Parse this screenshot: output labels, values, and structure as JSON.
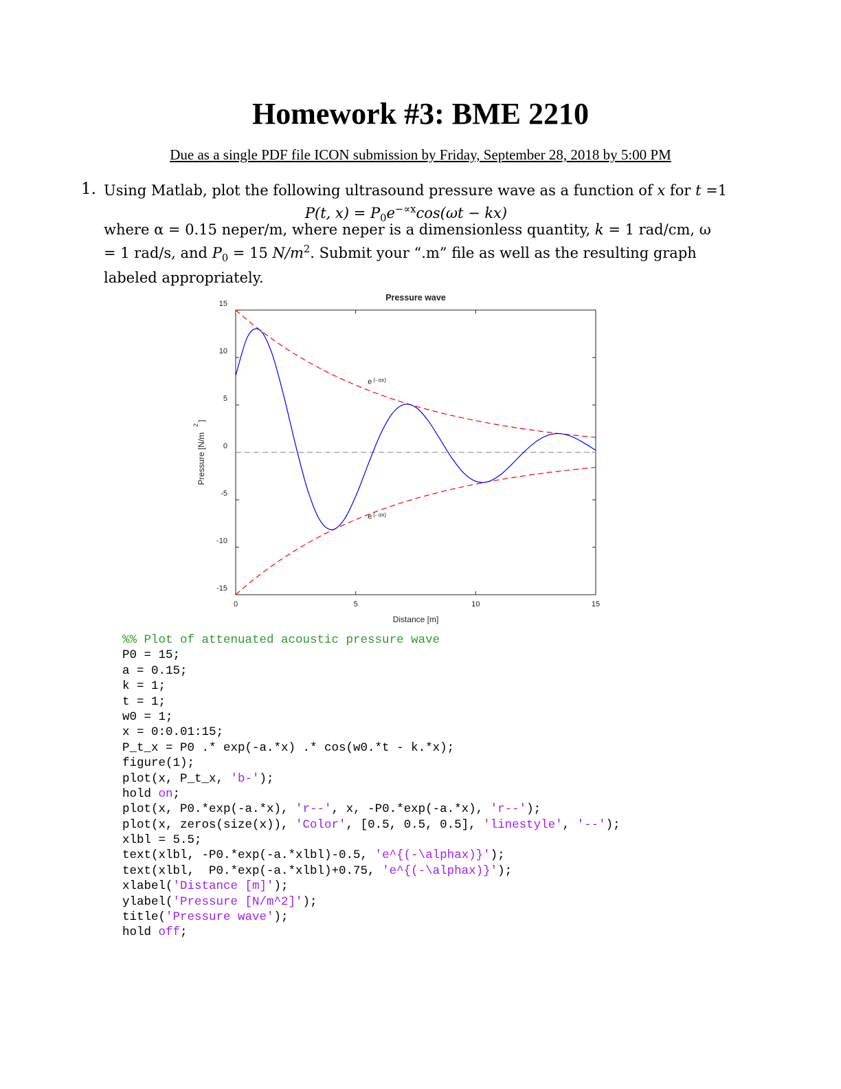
{
  "header": {
    "title": "Homework #3: BME 2210",
    "due": "Due as a single PDF file ICON submission by Friday, September 28, 2018 by 5:00 PM"
  },
  "problem": {
    "number": "1.",
    "line1": [
      {
        "text": "Using Matlab, plot the following ultrasound pressure wave as a function of "
      },
      {
        "text": "x",
        "style": "italic"
      },
      {
        "text": " for "
      },
      {
        "text": "t",
        "style": "italic"
      },
      {
        "text": " =1"
      }
    ],
    "equation": [
      {
        "text": "P(t, x) = ",
        "style": "italic"
      },
      {
        "text": "P",
        "style": "italic"
      },
      {
        "text": "0",
        "style": "sub"
      },
      {
        "text": "e",
        "style": "italic"
      },
      {
        "text": "−∝x",
        "style": "sup"
      },
      {
        "text": "cos(ωt − kx)",
        "style": "italic"
      }
    ],
    "body": [
      {
        "text": "where α = 0.15 neper/m, where neper is a dimensionless quantity, "
      },
      {
        "text": "k",
        "style": "italic"
      },
      {
        "text": " = 1 rad/cm, ω = 1 rad/s, and "
      },
      {
        "text": "P",
        "style": "italic"
      },
      {
        "text": "0",
        "style": "sub"
      },
      {
        "text": " = 15 "
      },
      {
        "text": "N/m",
        "style": "italic"
      },
      {
        "text": "2",
        "style": "sup"
      },
      {
        "text": ". Submit your “.m” file as well as the resulting graph labeled appropriately."
      }
    ]
  },
  "chart_data": {
    "type": "line",
    "title": "Pressure wave",
    "xlabel": "Distance [m]",
    "ylabel": {
      "text": "Pressure [N/m",
      "sup": "2",
      "end": "]"
    },
    "x": [
      0,
      0.5,
      1,
      1.5,
      2,
      2.5,
      3,
      3.5,
      4,
      4.5,
      5,
      5.5,
      6,
      6.5,
      7,
      7.5,
      8,
      8.5,
      9,
      9.5,
      10,
      10.5,
      11,
      11.5,
      12,
      12.5,
      13,
      13.5,
      14,
      14.5,
      15
    ],
    "series": [
      {
        "color": "#0000ff",
        "dash": "solid",
        "values": [
          8.1,
          12.21,
          12.91,
          10.51,
          6.0,
          0.73,
          -3.98,
          -7.11,
          -8.15,
          -7.15,
          -4.63,
          -1.39,
          1.73,
          4.01,
          5.04,
          4.76,
          3.41,
          1.45,
          -0.57,
          -2.17,
          -3.05,
          -3.1,
          -2.42,
          -1.27,
          0.01,
          1.11,
          1.8,
          1.98,
          1.67,
          1.01,
          0.22
        ]
      },
      {
        "color": "#ff0000",
        "dash": "dashed",
        "values": [
          15,
          13.92,
          12.91,
          11.98,
          11.11,
          10.31,
          9.56,
          8.87,
          8.23,
          7.64,
          7.09,
          6.57,
          6.1,
          5.66,
          5.25,
          4.87,
          4.52,
          4.19,
          3.89,
          3.61,
          3.35,
          3.1,
          2.88,
          2.67,
          2.48,
          2.3,
          2.13,
          1.98,
          1.84,
          1.7,
          1.58
        ]
      },
      {
        "color": "#ff0000",
        "dash": "dashed",
        "values": [
          -15,
          -13.92,
          -12.91,
          -11.98,
          -11.11,
          -10.31,
          -9.56,
          -8.87,
          -8.23,
          -7.64,
          -7.09,
          -6.57,
          -6.1,
          -5.66,
          -5.25,
          -4.87,
          -4.52,
          -4.19,
          -3.89,
          -3.61,
          -3.35,
          -3.1,
          -2.88,
          -2.67,
          -2.48,
          -2.3,
          -2.13,
          -1.98,
          -1.84,
          -1.7,
          -1.58
        ]
      },
      {
        "color": "#999999",
        "dash": "dashed",
        "values": [
          0,
          0,
          0,
          0,
          0,
          0,
          0,
          0,
          0,
          0,
          0,
          0,
          0,
          0,
          0,
          0,
          0,
          0,
          0,
          0,
          0,
          0,
          0,
          0,
          0,
          0,
          0,
          0,
          0,
          0,
          0
        ]
      }
    ],
    "annotations": [
      {
        "text": "e",
        "sup": "(- αx)",
        "x": 5.5,
        "y": 7.5
      },
      {
        "text": "e",
        "sup": "(- αx)",
        "x": 5.5,
        "y": -6.7
      }
    ],
    "xlim": [
      0,
      15
    ],
    "ylim": [
      -15,
      15
    ],
    "xticks": [
      0,
      5,
      10,
      15
    ],
    "yticks": [
      -15,
      -10,
      -5,
      0,
      5,
      10,
      15
    ],
    "grid": false
  },
  "code": {
    "lines": [
      [
        {
          "text": "%% Plot of attenuated acoustic pressure wave",
          "color": "#2e9a2e"
        }
      ],
      [
        {
          "text": "P0 = 15;"
        }
      ],
      [
        {
          "text": "a = 0.15;"
        }
      ],
      [
        {
          "text": "k = 1;"
        }
      ],
      [
        {
          "text": "t = 1;"
        }
      ],
      [
        {
          "text": "w0 = 1;"
        }
      ],
      [
        {
          "text": "x = 0:0.01:15;"
        }
      ],
      [
        {
          "text": "P_t_x = P0 .* exp(-a.*x) .* cos(w0.*t - k.*x);"
        }
      ],
      [
        {
          "text": "figure(1);"
        }
      ],
      [
        {
          "text": "plot(x, P_t_x, "
        },
        {
          "text": "'b-'",
          "color": "#a020f0"
        },
        {
          "text": ");"
        }
      ],
      [
        {
          "text": "hold "
        },
        {
          "text": "on",
          "color": "#a020f0"
        },
        {
          "text": ";"
        }
      ],
      [
        {
          "text": "plot(x, P0.*exp(-a.*x), "
        },
        {
          "text": "'r--'",
          "color": "#a020f0"
        },
        {
          "text": ", x, -P0.*exp(-a.*x), "
        },
        {
          "text": "'r--'",
          "color": "#a020f0"
        },
        {
          "text": ");"
        }
      ],
      [
        {
          "text": "plot(x, zeros(size(x)), "
        },
        {
          "text": "'Color'",
          "color": "#a020f0"
        },
        {
          "text": ", [0.5, 0.5, 0.5], "
        },
        {
          "text": "'linestyle'",
          "color": "#a020f0"
        },
        {
          "text": ", "
        },
        {
          "text": "'--'",
          "color": "#a020f0"
        },
        {
          "text": ");"
        }
      ],
      [
        {
          "text": "xlbl = 5.5;"
        }
      ],
      [
        {
          "text": "text(xlbl, -P0.*exp(-a.*xlbl)-0.5, "
        },
        {
          "text": "'e^{(-\\alphax)}'",
          "color": "#a020f0"
        },
        {
          "text": ");"
        }
      ],
      [
        {
          "text": "text(xlbl,  P0.*exp(-a.*xlbl)+0.75, "
        },
        {
          "text": "'e^{(-\\alphax)}'",
          "color": "#a020f0"
        },
        {
          "text": ");"
        }
      ],
      [
        {
          "text": "xlabel("
        },
        {
          "text": "'Distance [m]'",
          "color": "#a020f0"
        },
        {
          "text": ");"
        }
      ],
      [
        {
          "text": "ylabel("
        },
        {
          "text": "'Pressure [N/m^2]'",
          "color": "#a020f0"
        },
        {
          "text": ");"
        }
      ],
      [
        {
          "text": "title("
        },
        {
          "text": "'Pressure wave'",
          "color": "#a020f0"
        },
        {
          "text": ");"
        }
      ],
      [
        {
          "text": "hold "
        },
        {
          "text": "off",
          "color": "#a020f0"
        },
        {
          "text": ";"
        }
      ]
    ]
  }
}
